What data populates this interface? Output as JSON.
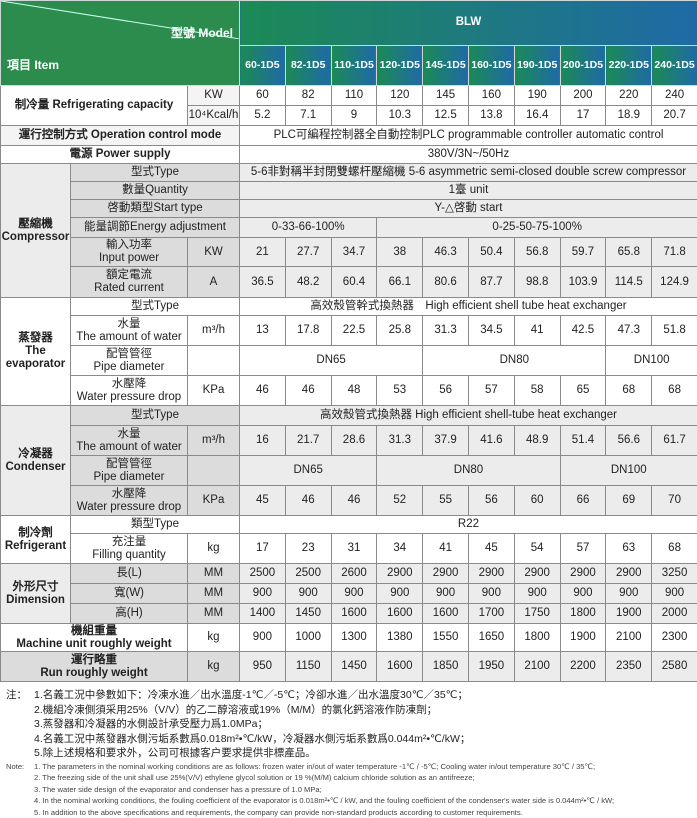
{
  "header": {
    "model_label": "型號 Model",
    "item_label": "項目 Item",
    "series": "BLW",
    "models": [
      "60-1D5",
      "82-1D5",
      "110-1D5",
      "120-1D5",
      "145-1D5",
      "160-1D5",
      "190-1D5",
      "200-1D5",
      "220-1D5",
      "240-1D5"
    ]
  },
  "capacity": {
    "label": "制冷量 Refrigerating capacity",
    "unit_kw": "KW",
    "unit_kcal": "10⁴Kcal/h",
    "kw": [
      "60",
      "82",
      "110",
      "120",
      "145",
      "160",
      "190",
      "200",
      "220",
      "240"
    ],
    "kcal": [
      "5.2",
      "7.1",
      "9",
      "10.3",
      "12.5",
      "13.8",
      "16.4",
      "17",
      "18.9",
      "20.7"
    ]
  },
  "operation": {
    "label": "運行控制方式 Operation control mode",
    "value": "PLC可編程控制器全自動控制PLC programmable controller automatic control"
  },
  "power": {
    "label": "電源 Power supply",
    "value": "380V/3N~/50Hz"
  },
  "compressor": {
    "group": "壓縮機\nCompressor",
    "type_label": "型式Type",
    "type_value": "5-6非對稱半封閉雙螺杆壓縮機 5-6 asymmetric semi-closed double screw compressor",
    "qty_label": "數量Quantity",
    "qty_value": "1臺 unit",
    "start_label": "啓動類型Start type",
    "start_value": "Y-△啓動 start",
    "energy_label": "能量調節Energy adjustment",
    "energy": [
      "0-33-66-100%",
      "0-25-50-75-100%"
    ],
    "input_label": "輸入功率\nInput power",
    "input_unit": "KW",
    "input": [
      "21",
      "27.7",
      "34.7",
      "38",
      "46.3",
      "50.4",
      "56.8",
      "59.7",
      "65.8",
      "71.8"
    ],
    "current_label": "額定電流\nRated current",
    "current_unit": "A",
    "current": [
      "36.5",
      "48.2",
      "60.4",
      "66.1",
      "80.6",
      "87.7",
      "98.8",
      "103.9",
      "114.5",
      "124.9"
    ]
  },
  "evaporator": {
    "group": "蒸發器\nThe\nevaporator",
    "type_label": "型式Type",
    "type_value": "高效殼管幹式換熱器　High efficient shell tube heat exchanger",
    "water_label": "水量\nThe amount of water",
    "water_unit": "m³/h",
    "water": [
      "13",
      "17.8",
      "22.5",
      "25.8",
      "31.3",
      "34.5",
      "41",
      "42.5",
      "47.3",
      "51.8"
    ],
    "pipe_label": "配管管徑\nPipe diameter",
    "pipe": [
      "DN65",
      "DN80",
      "DN100"
    ],
    "drop_label": "水壓降\nWater pressure drop",
    "drop_unit": "KPa",
    "drop": [
      "46",
      "46",
      "48",
      "53",
      "56",
      "57",
      "58",
      "65",
      "68",
      "68"
    ]
  },
  "condenser": {
    "group": "冷凝器\nCondenser",
    "type_label": "型式Type",
    "type_value": "高效殼管式換熱器 High efficient shell-tube heat exchanger",
    "water_label": "水量\nThe amount of water",
    "water_unit": "m³/h",
    "water": [
      "16",
      "21.7",
      "28.6",
      "31.3",
      "37.9",
      "41.6",
      "48.9",
      "51.4",
      "56.6",
      "61.7"
    ],
    "pipe_label": "配管管徑\nPipe diameter",
    "pipe": [
      "DN65",
      "DN80",
      "DN100"
    ],
    "drop_label": "水壓降\nWater pressure drop",
    "drop_unit": "KPa",
    "drop": [
      "45",
      "46",
      "46",
      "52",
      "55",
      "56",
      "60",
      "66",
      "69",
      "70"
    ]
  },
  "refrigerant": {
    "group": "制冷劑\nRefrigerant",
    "type_label": "類型Type",
    "type_value": "R22",
    "fill_label": "充注量\nFilling quantity",
    "fill_unit": "kg",
    "fill": [
      "17",
      "23",
      "31",
      "34",
      "41",
      "45",
      "54",
      "57",
      "63",
      "68"
    ]
  },
  "dimension": {
    "group": "外形尺寸\nDimension",
    "l_label": "長(L)",
    "w_label": "寬(W)",
    "h_label": "高(H)",
    "unit": "MM",
    "l": [
      "2500",
      "2500",
      "2600",
      "2900",
      "2900",
      "2900",
      "2900",
      "2900",
      "2900",
      "3250"
    ],
    "w": [
      "900",
      "900",
      "900",
      "900",
      "900",
      "900",
      "900",
      "900",
      "900",
      "900"
    ],
    "h": [
      "1400",
      "1450",
      "1600",
      "1600",
      "1600",
      "1700",
      "1750",
      "1800",
      "1900",
      "2000"
    ]
  },
  "machine_weight": {
    "label": "機組重量\nMachine unit roughly weight",
    "unit": "kg",
    "values": [
      "900",
      "1000",
      "1300",
      "1380",
      "1550",
      "1650",
      "1800",
      "1900",
      "2100",
      "2300"
    ]
  },
  "run_weight": {
    "label": "運行略重\nRun roughly weight",
    "unit": "kg",
    "values": [
      "950",
      "1150",
      "1450",
      "1600",
      "1850",
      "1950",
      "2100",
      "2200",
      "2350",
      "2580"
    ]
  },
  "notes": {
    "zh_tag": "注：",
    "zh": [
      "1.名義工況中參數如下：冷凍水進／出水溫度-1℃／-5℃；冷卻水進／出水溫度30℃／35℃；",
      "2.機組冷凍側須采用25%（V/V）的乙二醇溶液或19%（M/M）的氯化鈣溶液作防凍劑；",
      "3.蒸發器和冷凝器的水側設計承受壓力爲1.0MPa；",
      "4.名義工況中蒸發器水側污垢系數爲0.018m²•℃/kW，冷凝器水側污垢系數爲0.044m²•℃/kW；",
      "5.除上述規格和要求外，公司可根據客户要求提供非標產品。"
    ],
    "en_tag": "Note:",
    "en": [
      "1. The parameters in the nominal working conditions are as follows: frozen water in/out of water temperature -1℃ / -5℃; Cooling water in/out temperature 30℃ / 35℃;",
      "2. The freezing side of the unit shall use 25%(V/V) ethylene glycol solution or 19 %(M/M) calcium chloride solution as an antifreeze;",
      "3. The water side design of the evaporator and condenser has a pressure of 1.0 MPa;",
      "4. In the nominal working conditions, the fouling coefficient of the evaporator is 0.018m²•℃ / kW, and the fouling coefficient of the condenser's water side is 0.044m²•℃ / kW;",
      "5. In addition to the above specifications and requirements, the company can provide non-standard products according to customer requirements."
    ]
  }
}
